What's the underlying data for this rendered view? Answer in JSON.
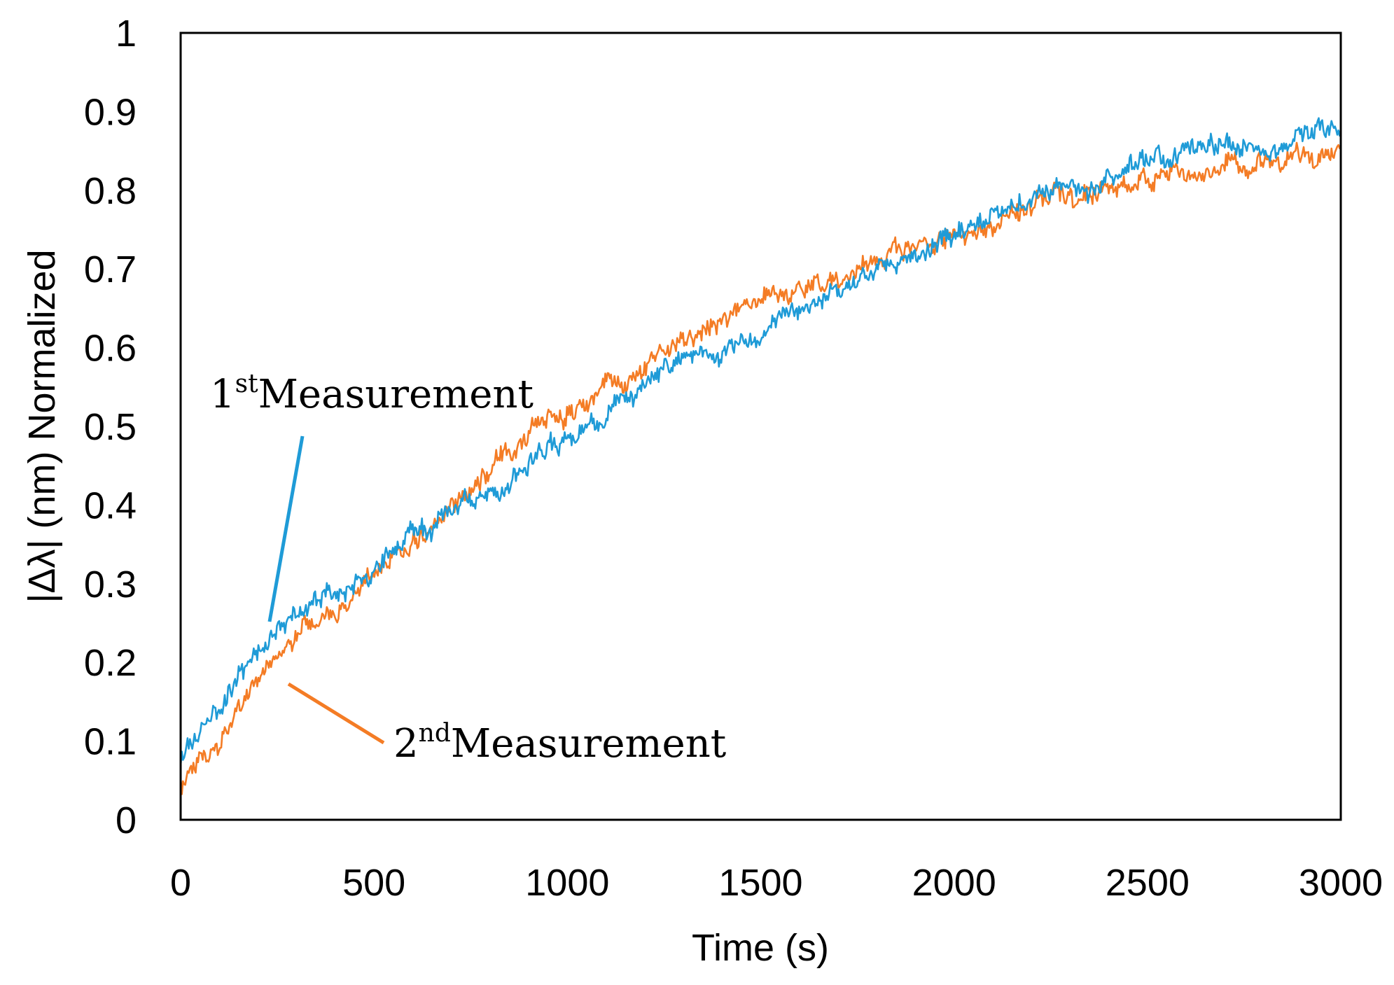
{
  "chart_data": {
    "type": "line",
    "title": "",
    "xlabel": "Time (s)",
    "ylabel": "|Δλ| (nm) Normalized",
    "xlim": [
      0,
      3000
    ],
    "ylim": [
      0,
      1
    ],
    "xticks": [
      0,
      500,
      1000,
      1500,
      2000,
      2500,
      3000
    ],
    "yticks": [
      0,
      0.1,
      0.2,
      0.3,
      0.4,
      0.5,
      0.6,
      0.7,
      0.8,
      0.9,
      1
    ],
    "xtick_labels": [
      "0",
      "500",
      "1000",
      "1500",
      "2000",
      "2500",
      "3000"
    ],
    "ytick_labels": [
      "0",
      "0.1",
      "0.2",
      "0.3",
      "0.4",
      "0.5",
      "0.6",
      "0.7",
      "0.8",
      "0.9",
      "1"
    ],
    "grid": false,
    "series": [
      {
        "name": "1st Measurement",
        "color": "#1f9bd7",
        "x": [
          0,
          50,
          100,
          150,
          200,
          250,
          300,
          350,
          400,
          450,
          500,
          550,
          600,
          650,
          700,
          750,
          800,
          850,
          900,
          950,
          1000,
          1050,
          1100,
          1150,
          1200,
          1250,
          1300,
          1350,
          1400,
          1450,
          1500,
          1550,
          1600,
          1650,
          1700,
          1750,
          1800,
          1850,
          1900,
          1950,
          2000,
          2050,
          2100,
          2150,
          2200,
          2250,
          2300,
          2350,
          2400,
          2450,
          2500,
          2550,
          2600,
          2650,
          2700,
          2750,
          2800,
          2850,
          2900,
          2950,
          3000
        ],
        "y": [
          0.08,
          0.11,
          0.14,
          0.18,
          0.21,
          0.24,
          0.26,
          0.27,
          0.29,
          0.31,
          0.32,
          0.34,
          0.36,
          0.37,
          0.39,
          0.41,
          0.42,
          0.43,
          0.45,
          0.47,
          0.48,
          0.5,
          0.51,
          0.53,
          0.55,
          0.57,
          0.58,
          0.59,
          0.6,
          0.61,
          0.62,
          0.63,
          0.65,
          0.66,
          0.67,
          0.68,
          0.7,
          0.71,
          0.72,
          0.73,
          0.74,
          0.75,
          0.76,
          0.77,
          0.79,
          0.8,
          0.8,
          0.81,
          0.82,
          0.83,
          0.84,
          0.84,
          0.85,
          0.85,
          0.86,
          0.86,
          0.86,
          0.86,
          0.87,
          0.87,
          0.87
        ]
      },
      {
        "name": "2nd Measurement",
        "color": "#f47c25",
        "x": [
          0,
          50,
          100,
          150,
          200,
          250,
          300,
          350,
          400,
          450,
          500,
          550,
          600,
          650,
          700,
          750,
          800,
          850,
          900,
          950,
          1000,
          1050,
          1100,
          1150,
          1200,
          1250,
          1300,
          1350,
          1400,
          1450,
          1500,
          1550,
          1600,
          1650,
          1700,
          1750,
          1800,
          1850,
          1900,
          1950,
          2000,
          2050,
          2100,
          2150,
          2200,
          2250,
          2300,
          2350,
          2400,
          2450,
          2500,
          2550,
          2600,
          2650,
          2700,
          2750,
          2800,
          2850,
          2900,
          2950,
          3000
        ],
        "y": [
          0.05,
          0.07,
          0.1,
          0.14,
          0.17,
          0.2,
          0.23,
          0.25,
          0.27,
          0.29,
          0.31,
          0.33,
          0.35,
          0.37,
          0.39,
          0.42,
          0.45,
          0.46,
          0.48,
          0.5,
          0.52,
          0.53,
          0.55,
          0.56,
          0.58,
          0.6,
          0.61,
          0.62,
          0.64,
          0.65,
          0.66,
          0.67,
          0.68,
          0.68,
          0.69,
          0.7,
          0.71,
          0.72,
          0.72,
          0.73,
          0.74,
          0.75,
          0.76,
          0.77,
          0.78,
          0.79,
          0.79,
          0.8,
          0.8,
          0.81,
          0.81,
          0.82,
          0.82,
          0.82,
          0.83,
          0.83,
          0.83,
          0.83,
          0.84,
          0.84,
          0.85
        ]
      }
    ],
    "annotations": [
      {
        "base": "1",
        "sup": "st",
        "text": "Measurement",
        "series": "1st Measurement"
      },
      {
        "base": "2",
        "sup": "nd",
        "text": "Measurement",
        "series": "2nd Measurement"
      }
    ]
  }
}
